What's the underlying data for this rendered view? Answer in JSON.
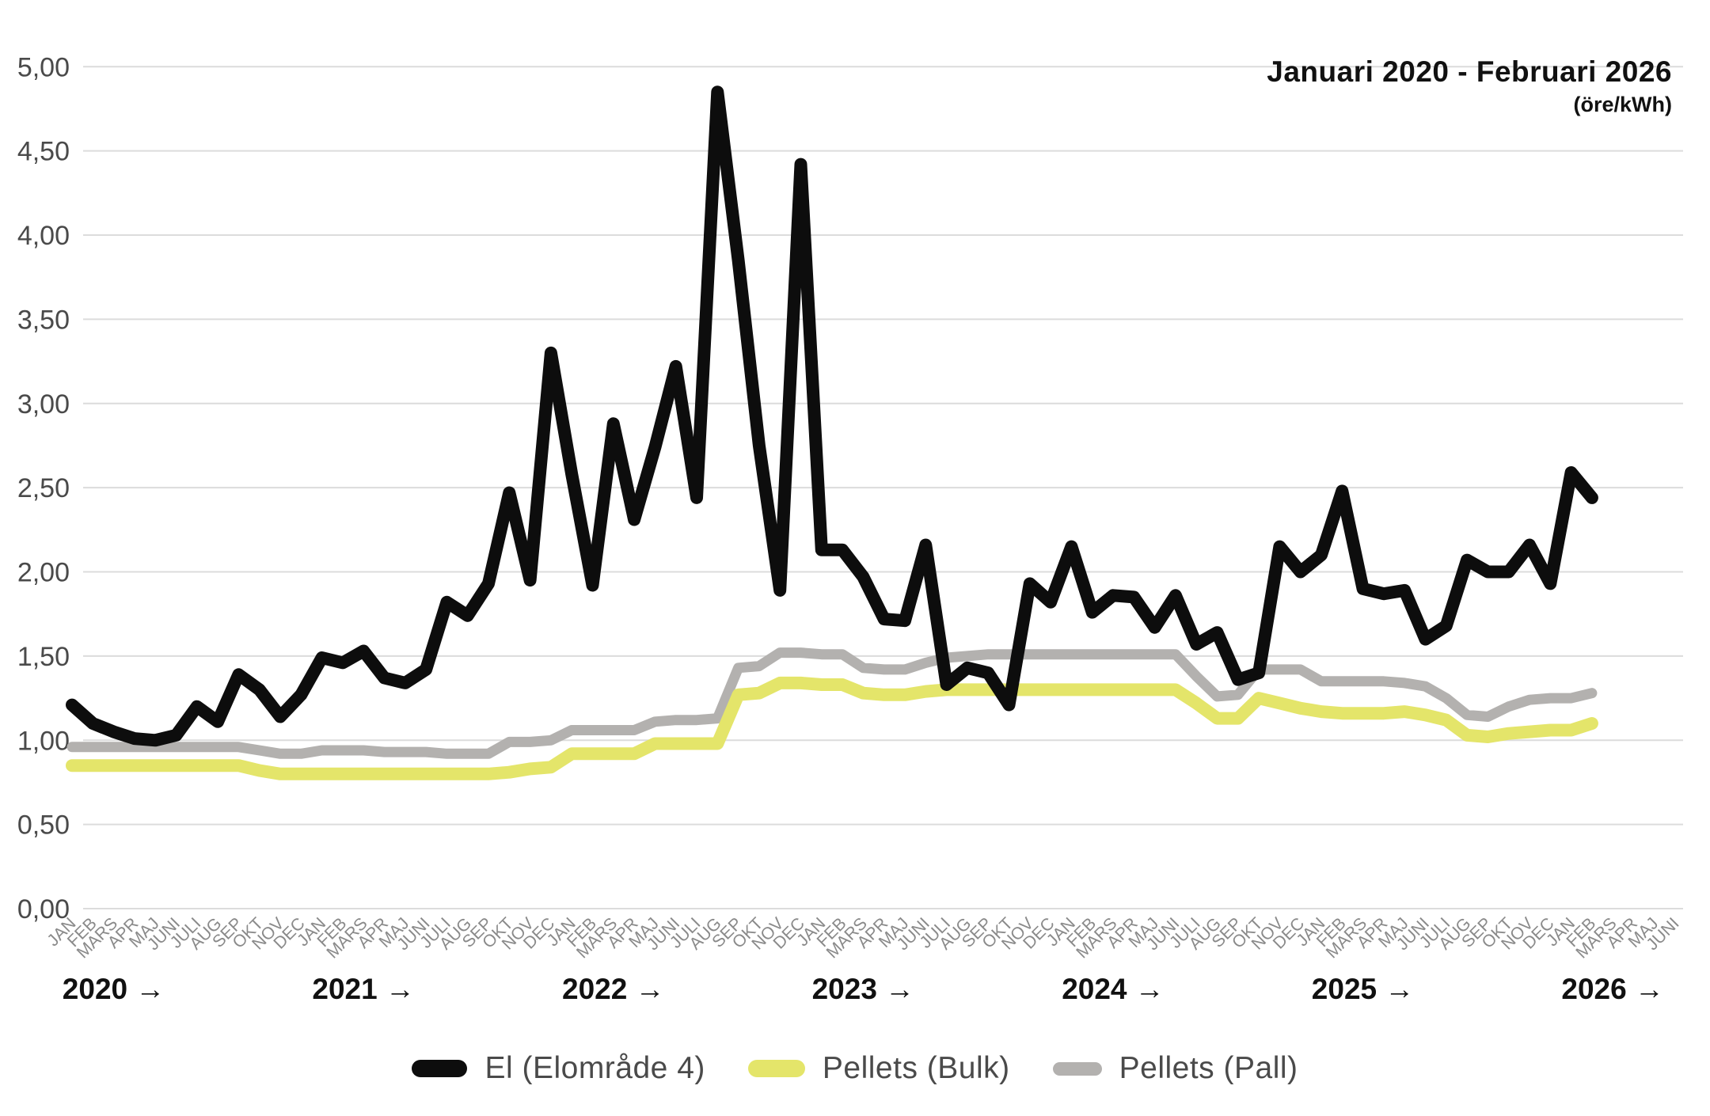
{
  "title": {
    "range": "Januari 2020 - Februari 2026",
    "unit": "(öre/kWh)"
  },
  "legend": [
    {
      "label": "El (Elområde 4)",
      "color": "#0d0d0d"
    },
    {
      "label": "Pellets (Bulk)",
      "color": "#e4e56a"
    },
    {
      "label": "Pellets (Pall)",
      "color": "#b3b1af"
    }
  ],
  "colors": {
    "grid": "#dcdcdc",
    "y_tick_text": "#4a4a4a",
    "month_text": "#8a8a8a",
    "year_text": "#111111"
  },
  "chart_data": {
    "type": "line",
    "title": "Januari 2020 - Februari 2026",
    "ylabel": "(öre/kWh)",
    "ylim": [
      0,
      5
    ],
    "grid": "horizontal",
    "legend_position": "bottom-center",
    "y_tick_labels": [
      "0,00",
      "0,50",
      "1,00",
      "1,50",
      "2,00",
      "2,50",
      "3,00",
      "3,50",
      "4,00",
      "4,50",
      "5,00"
    ],
    "x_month_labels": [
      "JAN",
      "FEB",
      "MARS",
      "APR",
      "MAJ",
      "JUNI",
      "JULI",
      "AUG",
      "SEP",
      "OKT",
      "NOV",
      "DEC",
      "JAN",
      "FEB",
      "MARS",
      "APR",
      "MAJ",
      "JUNI",
      "JULI",
      "AUG",
      "SEP",
      "OKT",
      "NOV",
      "DEC",
      "JAN",
      "FEB",
      "MARS",
      "APR",
      "MAJ",
      "JUNI",
      "JULI",
      "AUG",
      "SEP",
      "OKT",
      "NOV",
      "DEC",
      "JAN",
      "FEB",
      "MARS",
      "APR",
      "MAJ",
      "JUNI",
      "JULI",
      "AUG",
      "SEP",
      "OKT",
      "NOV",
      "DEC",
      "JAN",
      "FEB",
      "MARS",
      "APR",
      "MAJ",
      "JUNI",
      "JULI",
      "AUG",
      "SEP",
      "OKT",
      "NOV",
      "DEC",
      "JAN",
      "FEB",
      "MARS",
      "APR",
      "MAJ",
      "JUNI",
      "JULI",
      "AUG",
      "SEP",
      "OKT",
      "NOV",
      "DEC",
      "JAN",
      "FEB",
      "MARS",
      "APR",
      "MAJ",
      "JUNI"
    ],
    "year_labels": [
      "2020 →",
      "2021 →",
      "2022 →",
      "2023 →",
      "2024 →",
      "2025 →",
      "2026 →"
    ],
    "series": [
      {
        "id": "pellets-pall",
        "name": "Pellets (Pall)",
        "color": "#b3b1af",
        "stroke_width": 13,
        "values": [
          0.96,
          0.96,
          0.96,
          0.96,
          0.96,
          0.96,
          0.96,
          0.96,
          0.96,
          0.94,
          0.92,
          0.92,
          0.94,
          0.94,
          0.94,
          0.93,
          0.93,
          0.93,
          0.92,
          0.92,
          0.92,
          0.99,
          0.99,
          1.0,
          1.06,
          1.06,
          1.06,
          1.06,
          1.11,
          1.12,
          1.12,
          1.13,
          1.43,
          1.44,
          1.52,
          1.52,
          1.51,
          1.51,
          1.43,
          1.42,
          1.42,
          1.46,
          1.49,
          1.5,
          1.51,
          1.51,
          1.51,
          1.51,
          1.51,
          1.51,
          1.51,
          1.51,
          1.51,
          1.51,
          1.38,
          1.26,
          1.27,
          1.42,
          1.42,
          1.42,
          1.35,
          1.35,
          1.35,
          1.35,
          1.34,
          1.32,
          1.25,
          1.15,
          1.14,
          1.2,
          1.24,
          1.25,
          1.25,
          1.28
        ]
      },
      {
        "id": "pellets-bulk",
        "name": "Pellets (Bulk)",
        "color": "#e4e56a",
        "stroke_width": 16,
        "values": [
          0.85,
          0.85,
          0.85,
          0.85,
          0.85,
          0.85,
          0.85,
          0.85,
          0.85,
          0.82,
          0.8,
          0.8,
          0.8,
          0.8,
          0.8,
          0.8,
          0.8,
          0.8,
          0.8,
          0.8,
          0.8,
          0.81,
          0.83,
          0.84,
          0.92,
          0.92,
          0.92,
          0.92,
          0.98,
          0.98,
          0.98,
          0.98,
          1.27,
          1.28,
          1.34,
          1.34,
          1.33,
          1.33,
          1.28,
          1.27,
          1.27,
          1.29,
          1.3,
          1.3,
          1.3,
          1.3,
          1.3,
          1.3,
          1.3,
          1.3,
          1.3,
          1.3,
          1.3,
          1.3,
          1.22,
          1.13,
          1.13,
          1.25,
          1.22,
          1.19,
          1.17,
          1.16,
          1.16,
          1.16,
          1.17,
          1.15,
          1.12,
          1.03,
          1.02,
          1.04,
          1.05,
          1.06,
          1.06,
          1.1
        ]
      },
      {
        "id": "el-elomrade-4",
        "name": "El (Elområde 4)",
        "color": "#0d0d0d",
        "stroke_width": 16,
        "values": [
          1.21,
          1.1,
          1.05,
          1.01,
          1.0,
          1.03,
          1.2,
          1.11,
          1.39,
          1.3,
          1.14,
          1.27,
          1.49,
          1.46,
          1.53,
          1.37,
          1.34,
          1.42,
          1.82,
          1.74,
          1.93,
          2.47,
          1.95,
          3.3,
          2.58,
          1.92,
          2.88,
          2.31,
          2.74,
          3.22,
          2.44,
          4.85,
          3.85,
          2.75,
          1.89,
          4.42,
          2.13,
          2.13,
          1.97,
          1.72,
          1.71,
          2.16,
          1.33,
          1.43,
          1.4,
          1.21,
          1.93,
          1.82,
          2.15,
          1.76,
          1.86,
          1.85,
          1.67,
          1.86,
          1.57,
          1.64,
          1.36,
          1.4,
          2.15,
          2.0,
          2.1,
          2.48,
          1.9,
          1.87,
          1.89,
          1.6,
          1.68,
          2.07,
          2.0,
          2.0,
          2.16,
          1.93,
          2.59,
          2.44
        ]
      }
    ]
  }
}
